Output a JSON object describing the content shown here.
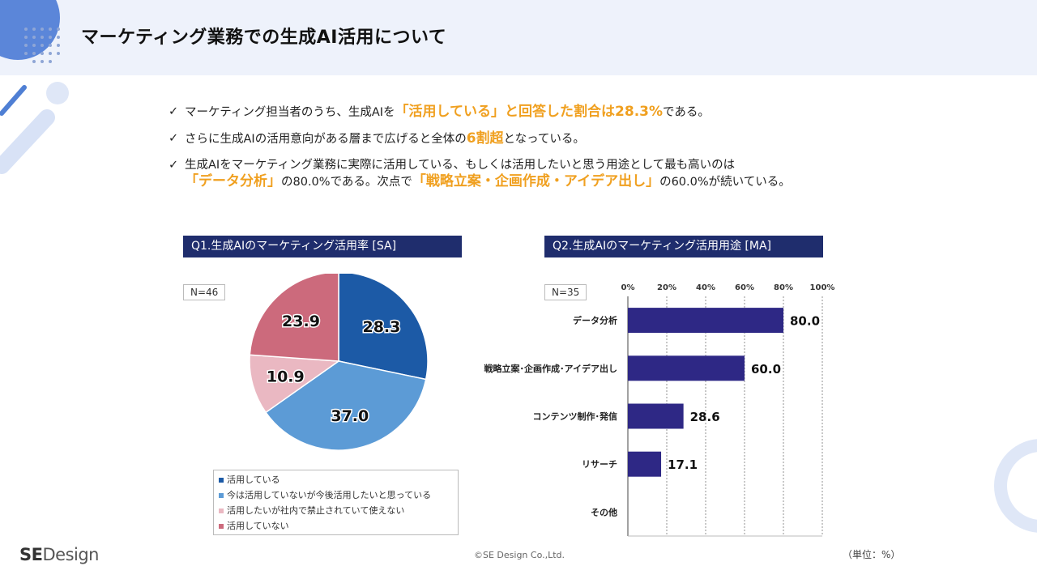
{
  "page": {
    "title": "マーケティング業務での生成AI活用について"
  },
  "bullets": [
    {
      "check": "✓",
      "parts": [
        {
          "text": "マーケティング担当者のうち、生成AIを",
          "hl": false
        },
        {
          "text": "「活用している」と回答した割合は28.3%",
          "hl": true
        },
        {
          "text": "である。",
          "hl": false
        }
      ]
    },
    {
      "check": "✓",
      "parts": [
        {
          "text": "さらに生成AIの活用意向がある層まで広げると全体の",
          "hl": false
        },
        {
          "text": "6割超",
          "hl": true
        },
        {
          "text": "となっている。",
          "hl": false
        }
      ]
    },
    {
      "check": "✓",
      "line1": "生成AIをマーケティング業務に実際に活用している、もしくは活用したいと思う用途として最も高いのは",
      "parts": [
        {
          "text": "「データ分析」",
          "hl": true
        },
        {
          "text": "の80.0%である。次点で",
          "hl": false
        },
        {
          "text": "「戦略立案・企画作成・アイデア出し」",
          "hl": true
        },
        {
          "text": "の60.0%が続いている。",
          "hl": false
        }
      ]
    }
  ],
  "q1": {
    "header": "Q1.生成AIのマーケティング活用率 [SA]",
    "n_label": "N=46"
  },
  "q2": {
    "header": "Q2.生成AIのマーケティング活用用途 [MA]",
    "n_label": "N=35"
  },
  "chart_data": [
    {
      "type": "pie",
      "categories": [
        "活用している",
        "今は活用していないが今後活用したいと思っている",
        "活用したいが社内で禁止されていて使えない",
        "活用していない"
      ],
      "values": [
        28.3,
        37.0,
        10.9,
        23.9
      ],
      "colors": [
        "#1c5aa6",
        "#5c9bd6",
        "#eab8c2",
        "#cc6a7c"
      ],
      "legend": "bottom"
    },
    {
      "type": "bar",
      "orientation": "horizontal",
      "categories": [
        "データ分析",
        "戦略立案･企画作成･アイデア出し",
        "コンテンツ制作･発信",
        "リサーチ",
        "その他"
      ],
      "values": [
        80.0,
        60.0,
        28.6,
        17.1,
        null
      ],
      "value_labels": [
        "80.0",
        "60.0",
        "28.6",
        "17.1",
        ""
      ],
      "xlim": [
        0,
        100
      ],
      "xticks": [
        "0%",
        "20%",
        "40%",
        "60%",
        "80%",
        "100%"
      ],
      "grid": true,
      "bar_color": "#2e2885",
      "unit_label": "（単位：%）"
    }
  ],
  "footer": {
    "copyright": "©SE Design Co.,Ltd.",
    "logo_bold": "SE",
    "logo_light": "Design"
  }
}
